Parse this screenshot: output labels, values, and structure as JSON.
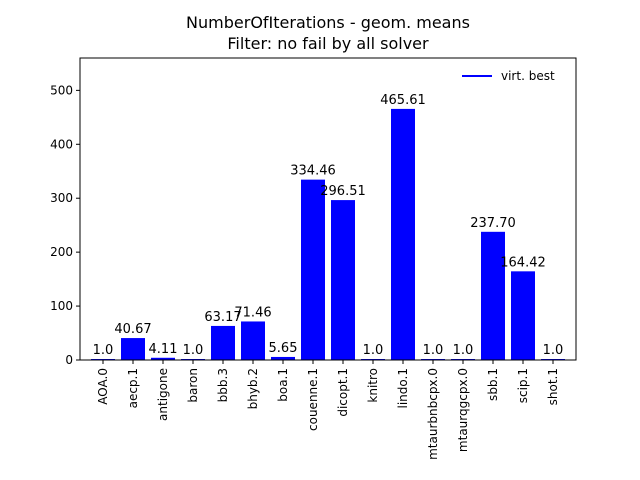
{
  "chart_data": {
    "type": "bar",
    "title": "NumberOfIterations - geom. means",
    "subtitle": "Filter: no fail by all solver",
    "xlabel": "",
    "ylabel": "",
    "categories": [
      "AOA.0",
      "aecp.1",
      "antigone",
      "baron",
      "bbb.3",
      "bhyb.2",
      "boa.1",
      "couenne.1",
      "dicopt.1",
      "knitro",
      "lindo.1",
      "mtaurbnbcpx.0",
      "mtaurqgcpx.0",
      "sbb.1",
      "scip.1",
      "shot.1"
    ],
    "series": [
      {
        "name": "virt. best",
        "values": [
          1.0,
          40.67,
          4.11,
          1.0,
          63.17,
          71.46,
          5.65,
          334.46,
          296.51,
          1.0,
          465.61,
          1.0,
          1.0,
          237.7,
          164.42,
          1.0
        ]
      }
    ],
    "data_labels": [
      "1.0",
      "40.67",
      "4.11",
      "1.0",
      "63.17",
      "71.46",
      "5.65",
      "334.46",
      "296.51",
      "1.0",
      "465.61",
      "1.0",
      "1.0",
      "237.70",
      "164.42",
      "1.0"
    ],
    "ylim": [
      0,
      560
    ],
    "yticks": [
      0,
      100,
      200,
      300,
      400,
      500
    ],
    "grid": false,
    "legend_position": "top-right",
    "bar_color": "#0000ff"
  }
}
